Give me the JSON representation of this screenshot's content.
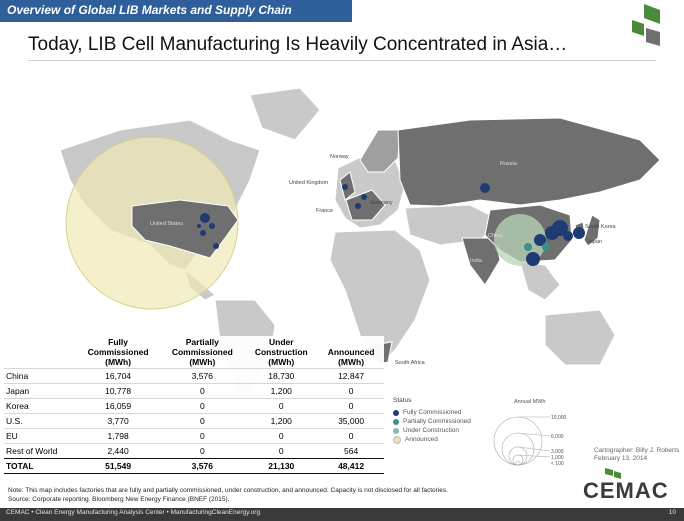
{
  "header": {
    "section_title": "Overview of Global LIB Markets and Supply Chain",
    "headline": "Today, LIB Cell Manufacturing Is Heavily Concentrated in Asia…"
  },
  "map": {
    "country_labels": [
      "Norway",
      "United Kingdom",
      "France",
      "Germany",
      "Russia",
      "China",
      "India",
      "South Korea",
      "Japan",
      "United States",
      "South Africa"
    ]
  },
  "table": {
    "columns": [
      {
        "line1": "Fully",
        "line2": "Commissioned",
        "unit": "(MWh)"
      },
      {
        "line1": "Partially",
        "line2": "Commissioned",
        "unit": "(MWh)"
      },
      {
        "line1": "Under",
        "line2": "Construction",
        "unit": "(MWh)"
      },
      {
        "line1": "",
        "line2": "Announced",
        "unit": "(MWh)"
      }
    ],
    "rows": [
      {
        "label": "China",
        "values": [
          "16,704",
          "3,576",
          "18,730",
          "12,847"
        ]
      },
      {
        "label": "Japan",
        "values": [
          "10,778",
          "0",
          "1,200",
          "0"
        ]
      },
      {
        "label": "Korea",
        "values": [
          "16,059",
          "0",
          "0",
          "0"
        ]
      },
      {
        "label": "U.S.",
        "values": [
          "3,770",
          "0",
          "1,200",
          "35,000"
        ]
      },
      {
        "label": "EU",
        "values": [
          "1,798",
          "0",
          "0",
          "0"
        ]
      },
      {
        "label": "Rest of World",
        "values": [
          "2,440",
          "0",
          "0",
          "564"
        ]
      }
    ],
    "total": {
      "label": "TOTAL",
      "values": [
        "51,549",
        "3,576",
        "21,130",
        "48,412"
      ]
    }
  },
  "legend": {
    "status_title": "Status",
    "items": [
      {
        "label": "Fully Commissioned",
        "color": "#1f3b73"
      },
      {
        "label": "Partially Commissioned",
        "color": "#3d8f8a"
      },
      {
        "label": "Under Construction",
        "color": "#8fb8a8"
      },
      {
        "label": "Announced",
        "color": "#e6e3b6"
      }
    ],
    "annual_title": "Annual MWh",
    "annual_values": [
      "10,000",
      "6,000",
      "3,000",
      "1,000",
      "< 100"
    ]
  },
  "cartographer": {
    "line1": "Cartographer: Billy J. Roberts",
    "line2": "February 13, 2014"
  },
  "note": {
    "line1": "Note:  This map includes factories that are fully and partially commissioned, under construction, and announced.  Capacity is not disclosed for all factories.",
    "line2": "Source:  Corporate reporting.  Bloomberg New Energy Finance (BNEF (2015)."
  },
  "brand": "CEMAC",
  "footer": {
    "left": "CEMAC • Clean Energy Manufacturing Analysis Center • ManufacturingCleanEnergy.org",
    "page": "10"
  },
  "colors": {
    "header_band": "#2f5f9a",
    "land": "#c9c9c9",
    "highlight_land": "#6f6f6f",
    "footer": "#3a3a3a",
    "logo_green": "#4a8a3a"
  }
}
